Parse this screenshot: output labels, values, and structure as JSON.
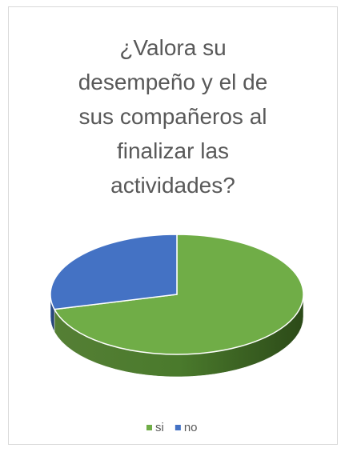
{
  "chart_data": {
    "type": "pie",
    "title": "¿Valora su desempeño y el de sus compañeros al finalizar las actividades?",
    "categories": [
      "si",
      "no"
    ],
    "values": [
      71,
      29
    ],
    "colors": [
      "#70ad47",
      "#4472c4"
    ],
    "legend": "bottom"
  }
}
